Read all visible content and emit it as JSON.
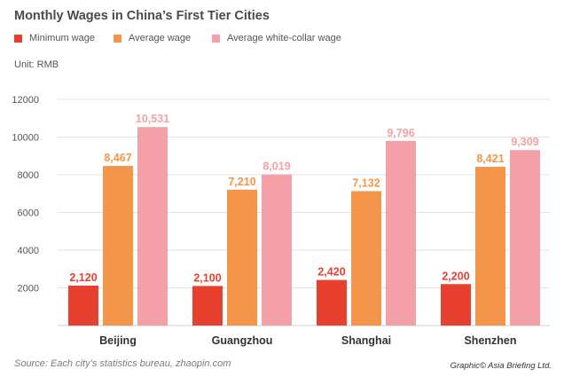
{
  "chart_data": {
    "type": "bar",
    "title": "Monthly Wages in China’s First Tier Cities",
    "unit_label": "Unit: RMB",
    "categories": [
      "Beijing",
      "Guangzhou",
      "Shanghai",
      "Shenzhen"
    ],
    "series": [
      {
        "name": "Minimum wage",
        "color": "#e8402f",
        "values": [
          2120,
          2100,
          2420,
          2200
        ],
        "labels": [
          "2,120",
          "2,100",
          "2,420",
          "2,200"
        ]
      },
      {
        "name": "Average wage",
        "color": "#f3954a",
        "values": [
          8467,
          7210,
          7132,
          8421
        ],
        "labels": [
          "8,467",
          "7,210",
          "7,132",
          "8,421"
        ]
      },
      {
        "name": "Average white-collar wage",
        "color": "#f4a0a8",
        "values": [
          10531,
          8019,
          9796,
          9309
        ],
        "labels": [
          "10,531",
          "8,019",
          "9,796",
          "9,309"
        ]
      }
    ],
    "yticks": [
      "2000",
      "4000",
      "6000",
      "8000",
      "10000",
      "12000"
    ],
    "ylim": [
      0,
      12000
    ],
    "grid": true,
    "legend_position": "top-left"
  },
  "footer": {
    "source": "Source: Each city’s statistics bureau, zhaopin.com",
    "credit": "Graphic© Asia Briefing Ltd."
  }
}
